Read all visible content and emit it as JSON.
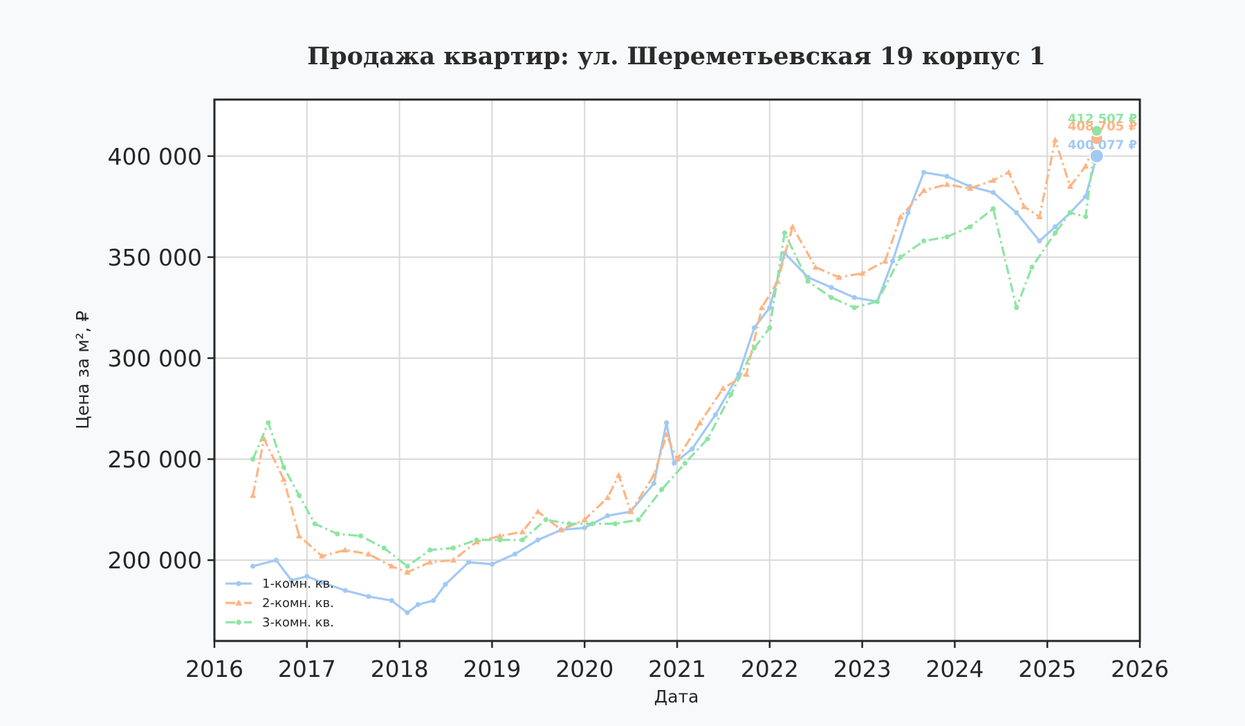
{
  "chart_data": {
    "type": "line",
    "title": "Продажа квартир: ул. Шереметьевская 19 корпус 1",
    "xlabel": "Дата",
    "ylabel": "Цена за м², ₽",
    "xlim": [
      "2016-01-01",
      "2026-01-01"
    ],
    "ylim": [
      160000,
      428000
    ],
    "x_ticks": [
      "2016",
      "2017",
      "2018",
      "2019",
      "2020",
      "2021",
      "2022",
      "2023",
      "2024",
      "2025",
      "2026"
    ],
    "y_ticks": [
      {
        "value": 200000,
        "label": "200 000"
      },
      {
        "value": 250000,
        "label": "250 000"
      },
      {
        "value": 300000,
        "label": "300 000"
      },
      {
        "value": 350000,
        "label": "350 000"
      },
      {
        "value": 400000,
        "label": "400 000"
      }
    ],
    "grid": true,
    "legend_position": "bottom-left",
    "series": [
      {
        "name": "1-комн. кв.",
        "color": "#a1c9f4",
        "marker": "circle",
        "dash": "solid",
        "points": [
          [
            "2016-06-01",
            197000
          ],
          [
            "2016-09-01",
            200000
          ],
          [
            "2016-11-01",
            190000
          ],
          [
            "2017-01-01",
            192000
          ],
          [
            "2017-03-01",
            189000
          ],
          [
            "2017-06-01",
            185000
          ],
          [
            "2017-09-01",
            182000
          ],
          [
            "2017-12-01",
            180000
          ],
          [
            "2018-02-01",
            174000
          ],
          [
            "2018-03-15",
            178000
          ],
          [
            "2018-05-15",
            180000
          ],
          [
            "2018-07-01",
            188000
          ],
          [
            "2018-10-01",
            199000
          ],
          [
            "2019-01-01",
            198000
          ],
          [
            "2019-04-01",
            203000
          ],
          [
            "2019-07-01",
            210000
          ],
          [
            "2019-10-01",
            215000
          ],
          [
            "2020-01-01",
            216000
          ],
          [
            "2020-04-01",
            222000
          ],
          [
            "2020-07-01",
            224000
          ],
          [
            "2020-10-01",
            238000
          ],
          [
            "2020-11-20",
            268000
          ],
          [
            "2020-12-20",
            248000
          ],
          [
            "2021-03-01",
            255000
          ],
          [
            "2021-06-01",
            272000
          ],
          [
            "2021-09-01",
            292000
          ],
          [
            "2021-11-01",
            315000
          ],
          [
            "2022-01-01",
            325000
          ],
          [
            "2022-03-01",
            352000
          ],
          [
            "2022-06-01",
            340000
          ],
          [
            "2022-09-01",
            335000
          ],
          [
            "2022-12-01",
            330000
          ],
          [
            "2023-03-01",
            328000
          ],
          [
            "2023-05-01",
            348000
          ],
          [
            "2023-07-01",
            372000
          ],
          [
            "2023-09-01",
            392000
          ],
          [
            "2023-12-01",
            390000
          ],
          [
            "2024-03-01",
            385000
          ],
          [
            "2024-06-01",
            382000
          ],
          [
            "2024-09-01",
            372000
          ],
          [
            "2024-12-01",
            358000
          ],
          [
            "2025-02-01",
            365000
          ],
          [
            "2025-04-01",
            372000
          ],
          [
            "2025-06-01",
            380000
          ],
          [
            "2025-07-15",
            400077
          ]
        ]
      },
      {
        "name": "2-комн. кв.",
        "color": "#ffb482",
        "marker": "triangle",
        "dash": "dashdot",
        "points": [
          [
            "2016-06-01",
            232000
          ],
          [
            "2016-07-15",
            260000
          ],
          [
            "2016-10-01",
            240000
          ],
          [
            "2016-12-01",
            212000
          ],
          [
            "2017-03-01",
            202000
          ],
          [
            "2017-06-01",
            205000
          ],
          [
            "2017-09-01",
            203000
          ],
          [
            "2017-12-01",
            197000
          ],
          [
            "2018-02-01",
            194000
          ],
          [
            "2018-05-01",
            199000
          ],
          [
            "2018-08-01",
            200000
          ],
          [
            "2018-11-01",
            209000
          ],
          [
            "2019-02-01",
            212000
          ],
          [
            "2019-05-01",
            214000
          ],
          [
            "2019-07-01",
            224000
          ],
          [
            "2019-10-01",
            215000
          ],
          [
            "2020-01-01",
            220000
          ],
          [
            "2020-04-01",
            231000
          ],
          [
            "2020-05-15",
            242000
          ],
          [
            "2020-07-01",
            224000
          ],
          [
            "2020-10-01",
            242000
          ],
          [
            "2020-11-20",
            262000
          ],
          [
            "2021-01-01",
            250000
          ],
          [
            "2021-04-01",
            268000
          ],
          [
            "2021-07-01",
            285000
          ],
          [
            "2021-10-01",
            292000
          ],
          [
            "2021-12-01",
            325000
          ],
          [
            "2022-02-01",
            338000
          ],
          [
            "2022-04-01",
            365000
          ],
          [
            "2022-07-01",
            345000
          ],
          [
            "2022-10-01",
            340000
          ],
          [
            "2023-01-01",
            342000
          ],
          [
            "2023-04-01",
            348000
          ],
          [
            "2023-06-01",
            370000
          ],
          [
            "2023-09-01",
            383000
          ],
          [
            "2023-12-01",
            386000
          ],
          [
            "2024-03-01",
            384000
          ],
          [
            "2024-06-01",
            388000
          ],
          [
            "2024-08-01",
            392000
          ],
          [
            "2024-10-01",
            375000
          ],
          [
            "2024-12-01",
            370000
          ],
          [
            "2025-02-01",
            408000
          ],
          [
            "2025-04-01",
            385000
          ],
          [
            "2025-06-01",
            395000
          ],
          [
            "2025-07-15",
            408705
          ]
        ]
      },
      {
        "name": "3-комн. кв.",
        "color": "#8de5a1",
        "marker": "circle",
        "dash": "dashdot",
        "points": [
          [
            "2016-06-01",
            250000
          ],
          [
            "2016-08-01",
            268000
          ],
          [
            "2016-10-01",
            246000
          ],
          [
            "2016-12-01",
            232000
          ],
          [
            "2017-02-01",
            218000
          ],
          [
            "2017-05-01",
            213000
          ],
          [
            "2017-08-01",
            212000
          ],
          [
            "2017-11-01",
            206000
          ],
          [
            "2018-02-01",
            197000
          ],
          [
            "2018-05-01",
            205000
          ],
          [
            "2018-08-01",
            206000
          ],
          [
            "2018-11-01",
            210000
          ],
          [
            "2019-02-01",
            210000
          ],
          [
            "2019-05-01",
            210000
          ],
          [
            "2019-08-01",
            220000
          ],
          [
            "2019-11-01",
            218000
          ],
          [
            "2020-02-01",
            218000
          ],
          [
            "2020-05-01",
            218000
          ],
          [
            "2020-08-01",
            220000
          ],
          [
            "2020-11-01",
            235000
          ],
          [
            "2021-02-01",
            248000
          ],
          [
            "2021-05-01",
            260000
          ],
          [
            "2021-08-01",
            282000
          ],
          [
            "2021-11-01",
            305000
          ],
          [
            "2022-01-01",
            315000
          ],
          [
            "2022-03-01",
            362000
          ],
          [
            "2022-06-01",
            338000
          ],
          [
            "2022-09-01",
            330000
          ],
          [
            "2022-12-01",
            325000
          ],
          [
            "2023-03-01",
            328000
          ],
          [
            "2023-06-01",
            350000
          ],
          [
            "2023-09-01",
            358000
          ],
          [
            "2023-12-01",
            360000
          ],
          [
            "2024-03-01",
            365000
          ],
          [
            "2024-06-01",
            374000
          ],
          [
            "2024-09-01",
            325000
          ],
          [
            "2024-11-01",
            345000
          ],
          [
            "2025-02-01",
            362000
          ],
          [
            "2025-04-01",
            372000
          ],
          [
            "2025-06-01",
            370000
          ],
          [
            "2025-07-15",
            412507
          ]
        ]
      }
    ],
    "end_labels": [
      {
        "series": "3-комн. кв.",
        "text": "412 507 ₽"
      },
      {
        "series": "2-комн. кв.",
        "text": "408 705 ₽"
      },
      {
        "series": "1-комн. кв.",
        "text": "400 077 ₽"
      }
    ]
  }
}
